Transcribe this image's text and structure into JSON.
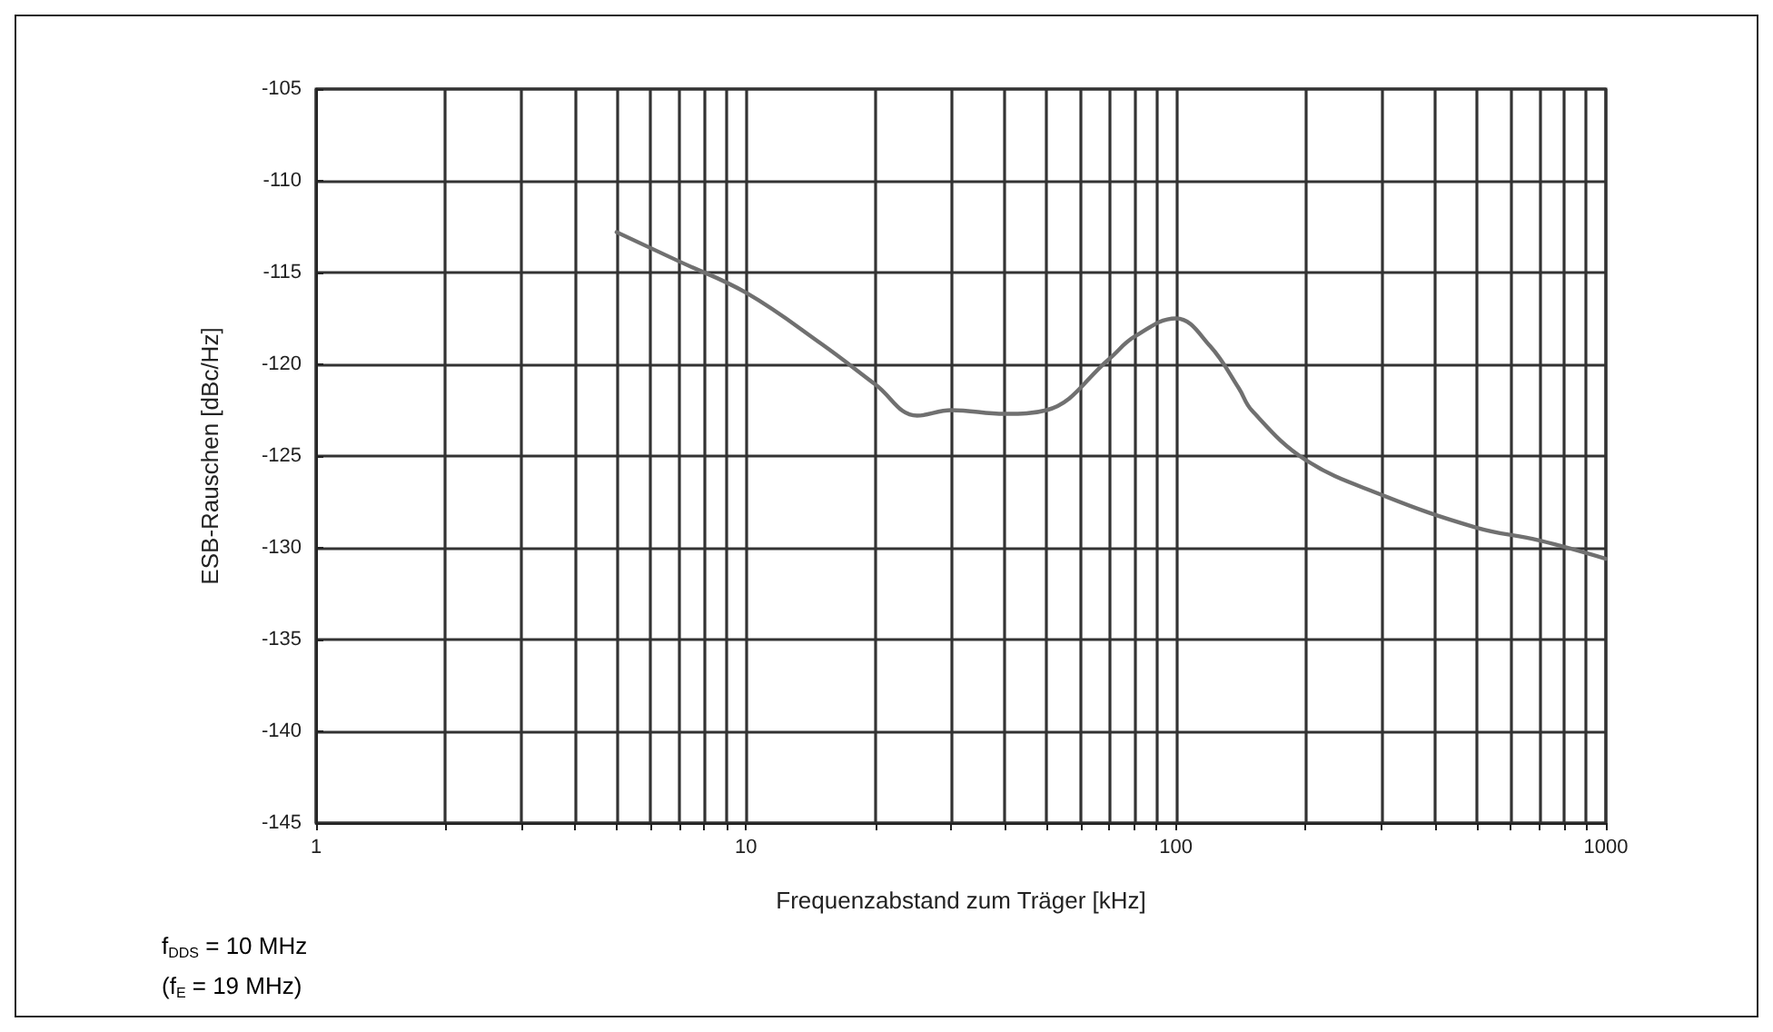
{
  "chart_data": {
    "type": "line",
    "xlabel": "Frequenzabstand zum Träger [kHz]",
    "ylabel": "ESB-Rauschen [dBc/Hz]",
    "annotations": [
      "f$_{DDS}$ = 10 MHz",
      "(f$_{E}$ = 19 MHz)"
    ],
    "log": "x",
    "grid": true,
    "marker": "none",
    "line_style": "solid",
    "xlim": [
      1,
      1000
    ],
    "ylim": [
      -145,
      -105
    ],
    "xticks": [
      1,
      {
        "value": 2,
        "label": null
      },
      {
        "value": 3,
        "label": null
      },
      {
        "value": 4,
        "label": null
      },
      {
        "value": 5,
        "label": null
      },
      {
        "value": 6,
        "label": null
      },
      {
        "value": 7,
        "label": null
      },
      {
        "value": 8,
        "label": null
      },
      {
        "value": 9,
        "label": null
      },
      10,
      {
        "value": 20,
        "label": null
      },
      {
        "value": 30,
        "label": null
      },
      {
        "value": 40,
        "label": null
      },
      {
        "value": 50,
        "label": null
      },
      {
        "value": 60,
        "label": null
      },
      {
        "value": 70,
        "label": null
      },
      {
        "value": 80,
        "label": null
      },
      {
        "value": 90,
        "label": null
      },
      100,
      {
        "value": 200,
        "label": null
      },
      {
        "value": 300,
        "label": null
      },
      {
        "value": 400,
        "label": null
      },
      {
        "value": 500,
        "label": null
      },
      {
        "value": 600,
        "label": null
      },
      {
        "value": 700,
        "label": null
      },
      {
        "value": 800,
        "label": null
      },
      {
        "value": 900,
        "label": null
      },
      1000
    ],
    "yticks": [
      -145,
      -140,
      -135,
      -130,
      -125,
      -120,
      -115,
      -110,
      -105
    ],
    "x": [
      5,
      7,
      10,
      15,
      20,
      25,
      30,
      40,
      50,
      70,
      80,
      100,
      120,
      140,
      150,
      200,
      300,
      500,
      700,
      1000
    ],
    "series": [
      {
        "color": "#707070",
        "values": [
          -112.8,
          -114.4,
          -116.1,
          -118.9,
          -121.1,
          -122.8,
          -122.5,
          -122.7,
          -122.5,
          -119.7,
          -118.5,
          -117.5,
          -119.0,
          -121.3,
          -122.5,
          -125.2,
          -127.1,
          -128.9,
          -129.6,
          -130.6
        ]
      }
    ]
  }
}
